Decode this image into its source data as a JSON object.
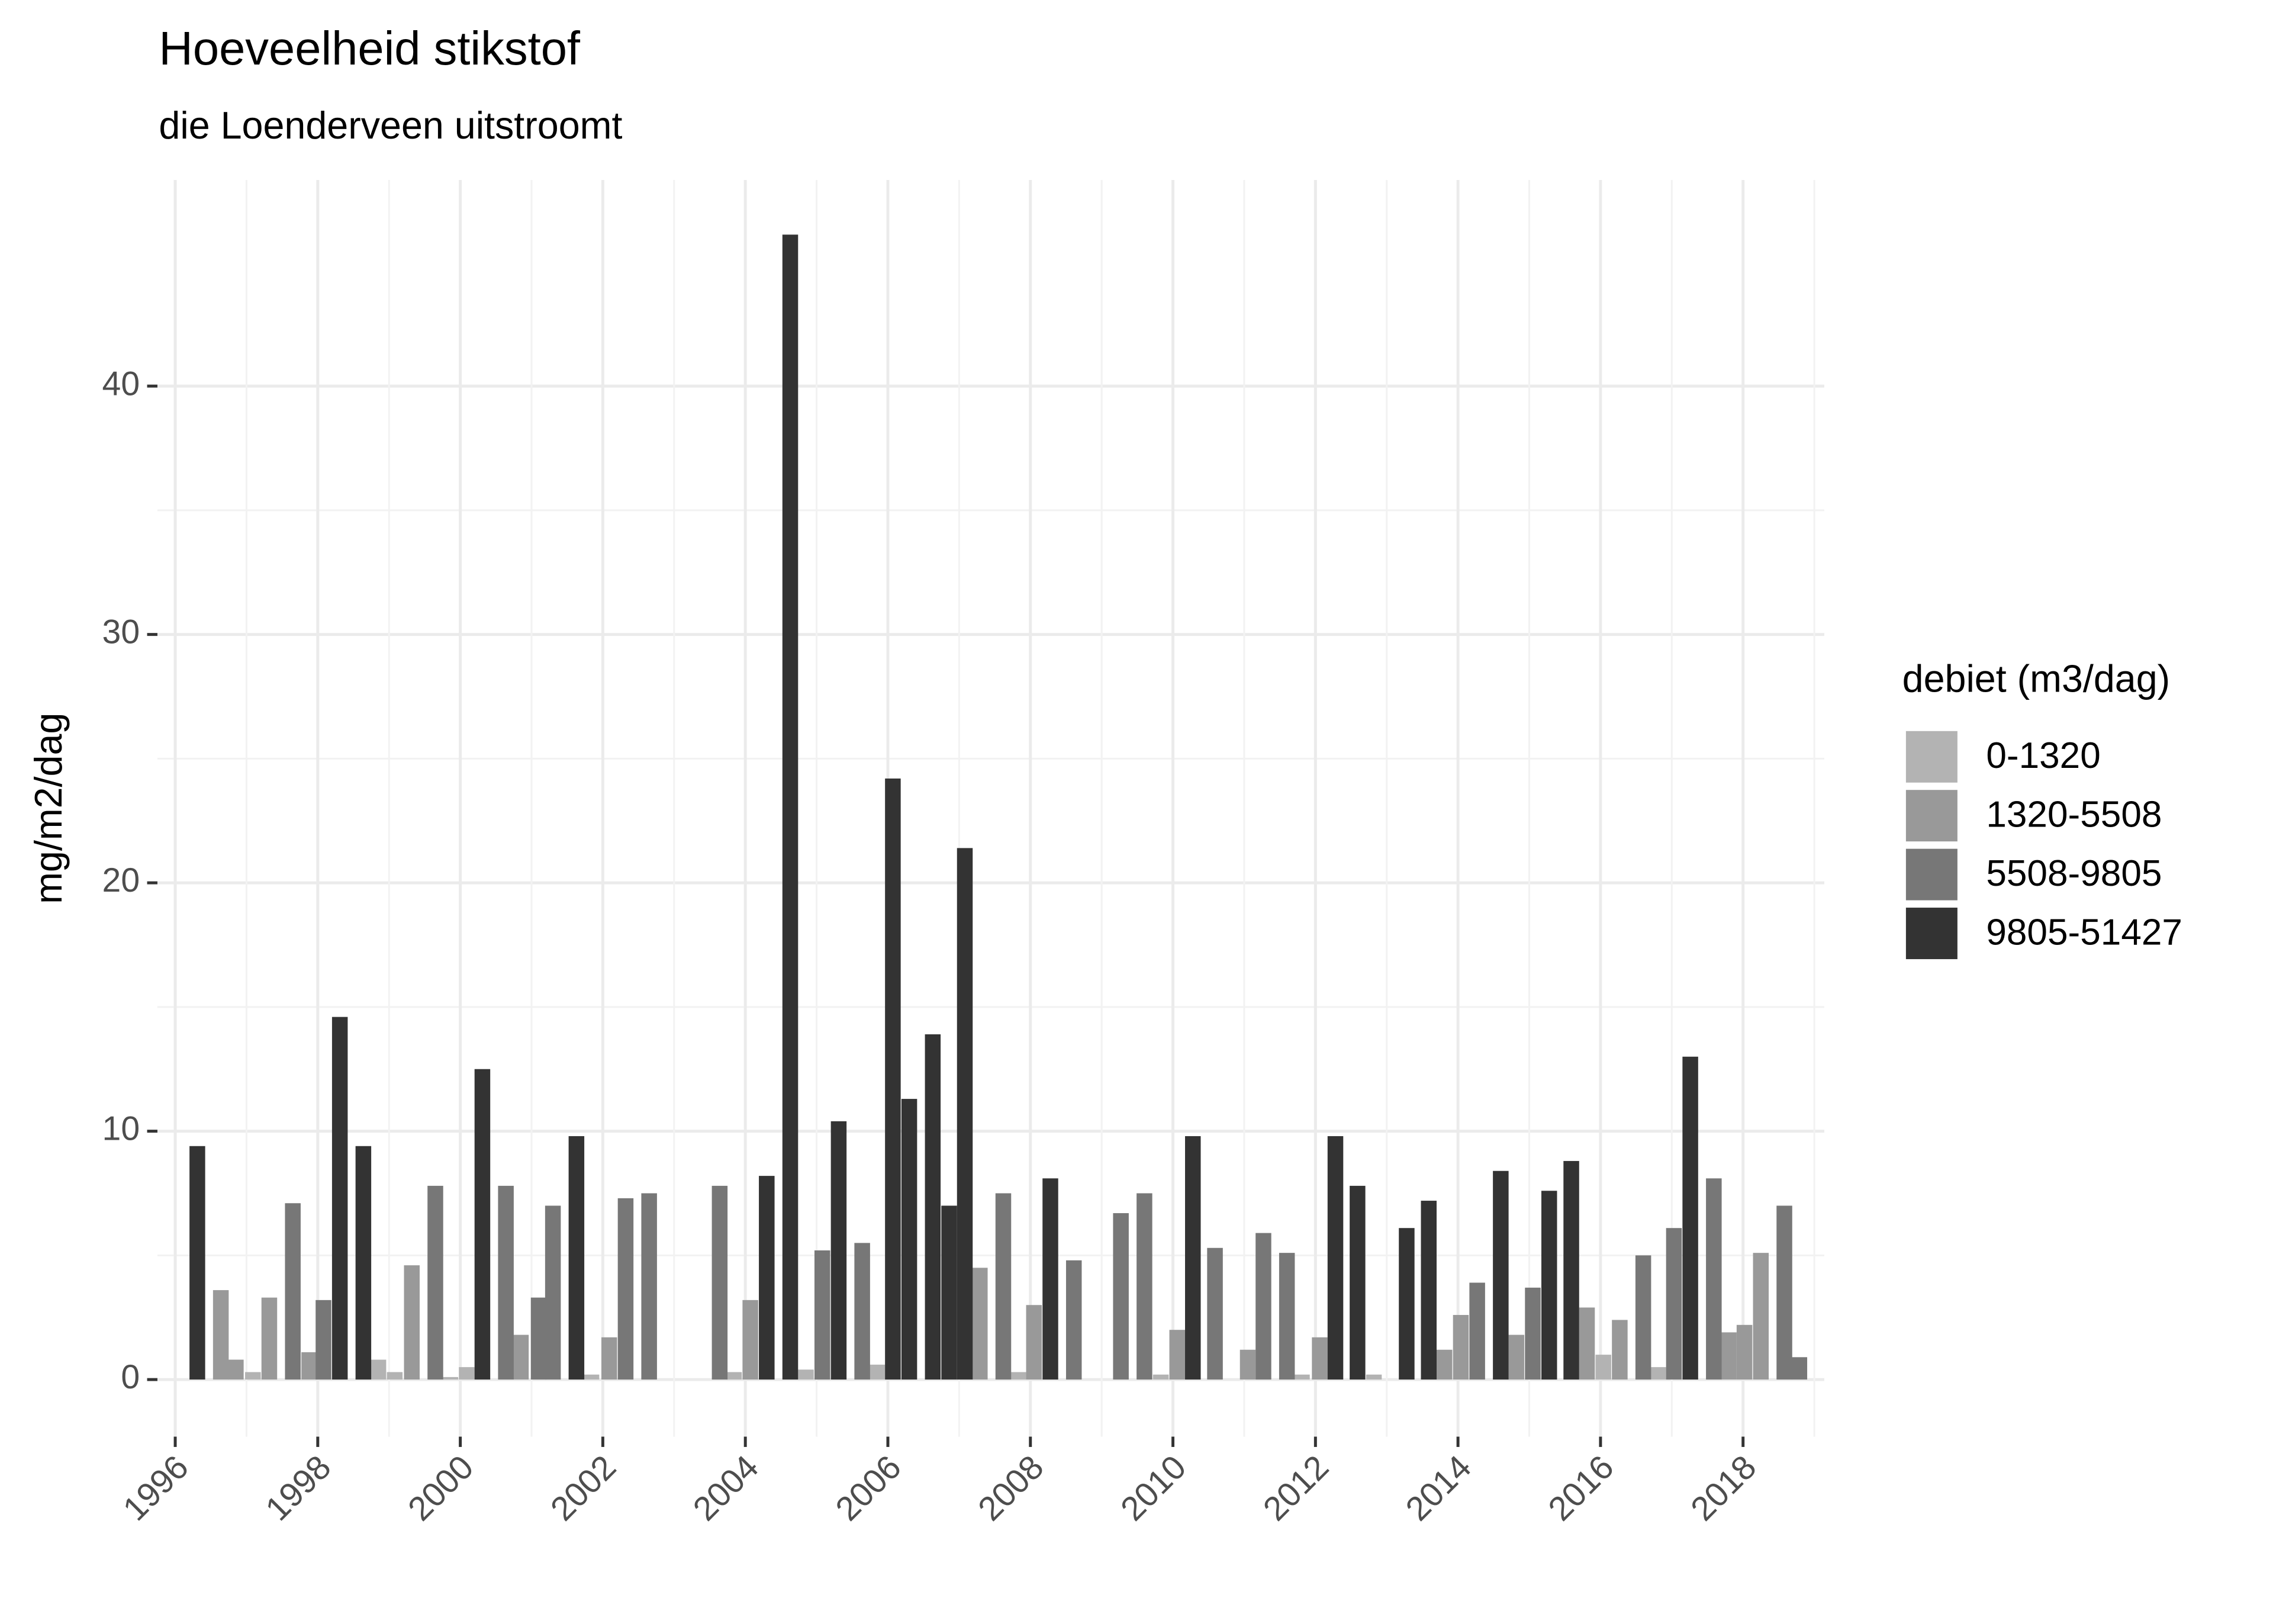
{
  "chart_data": {
    "type": "bar",
    "title": "Hoeveelheid stikstof",
    "subtitle": "die Loenderveen uitstroomt",
    "y_label": "mg/m2/dag",
    "legend_title": "debiet (m3/dag)",
    "legend_position": "right",
    "grid": true,
    "minor_grid": true,
    "bar_width": 0.22,
    "xlim": [
      1995.75,
      2019.14
    ],
    "xticks": [
      1996,
      1998,
      2000,
      2002,
      2004,
      2006,
      2008,
      2010,
      2012,
      2014,
      2016,
      2018
    ],
    "ylim": [
      -2.3,
      48.3
    ],
    "yticks": [
      0,
      10,
      20,
      30,
      40
    ],
    "series": [
      {
        "name": "0-1320",
        "color": "#b3b3b3",
        "x": [
          1997.09,
          1998.85,
          1999.08,
          1999.86,
          2000.09,
          2001.84,
          2003.84,
          2004.85,
          2005.85,
          2007.83,
          2009.83,
          2011.81,
          2012.82,
          2016.04,
          2016.81
        ],
        "values": [
          0.3,
          0.8,
          0.3,
          0.1,
          0.5,
          0.2,
          0.3,
          0.4,
          0.6,
          0.3,
          0.2,
          0.2,
          0.2,
          1.0,
          0.5
        ]
      },
      {
        "name": "1320-5508",
        "color": "#999999",
        "x": [
          1996.64,
          1996.85,
          1997.32,
          1997.88,
          1999.32,
          2000.85,
          2002.09,
          2004.07,
          2007.29,
          2008.05,
          2010.06,
          2011.05,
          2012.06,
          2013.81,
          2014.04,
          2014.82,
          2015.81,
          2016.27,
          2017.8,
          2018.02,
          2018.25
        ],
        "values": [
          3.6,
          0.8,
          3.3,
          1.1,
          4.6,
          1.8,
          1.7,
          3.2,
          4.5,
          3.0,
          2.0,
          1.2,
          1.7,
          1.2,
          2.6,
          1.8,
          2.9,
          2.4,
          1.9,
          2.2,
          5.1
        ]
      },
      {
        "name": "5508-9805",
        "color": "#777777",
        "x": [
          1997.65,
          1998.08,
          1999.65,
          2000.64,
          2001.1,
          2001.3,
          2002.32,
          2002.65,
          2003.64,
          2005.08,
          2005.64,
          2007.62,
          2008.61,
          2009.27,
          2009.6,
          2010.59,
          2011.27,
          2011.6,
          2014.27,
          2015.05,
          2016.6,
          2017.03,
          2017.59,
          2018.58,
          2018.79
        ],
        "values": [
          7.1,
          3.2,
          7.8,
          7.8,
          3.3,
          7.0,
          7.3,
          7.5,
          7.8,
          5.2,
          5.5,
          7.5,
          4.8,
          6.7,
          7.5,
          5.3,
          5.9,
          5.1,
          3.9,
          3.7,
          5.0,
          6.1,
          8.1,
          7.0,
          0.9
        ]
      },
      {
        "name": "9805-51427",
        "color": "#333333",
        "x": [
          1996.31,
          1998.31,
          1998.64,
          2000.31,
          2001.63,
          2004.3,
          2004.63,
          2005.31,
          2006.07,
          2006.3,
          2006.63,
          2006.86,
          2007.08,
          2008.28,
          2010.28,
          2012.28,
          2012.59,
          2013.28,
          2013.59,
          2014.6,
          2015.28,
          2015.59,
          2017.26
        ],
        "values": [
          9.4,
          14.6,
          9.4,
          12.5,
          9.8,
          8.2,
          46.1,
          10.4,
          24.2,
          11.3,
          13.9,
          7.0,
          21.4,
          8.1,
          9.8,
          9.8,
          7.8,
          6.1,
          7.2,
          8.4,
          7.6,
          8.8,
          13.0
        ]
      }
    ]
  }
}
